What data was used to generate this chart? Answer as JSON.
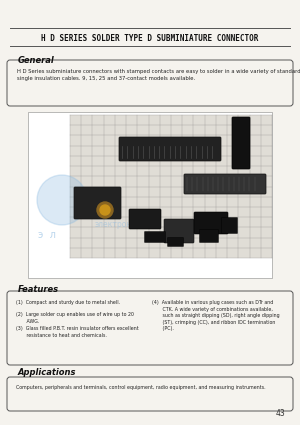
{
  "bg_color": "#f5f3ee",
  "title": "H D SERIES SOLDER TYPE D SUBMINIATURE CONNECTOR",
  "title_color": "#111111",
  "section_general_label": "General",
  "general_text": "H D Series subminiature connectors with stamped contacts are easy to solder in a wide variety of standard and\nsingle insulation cables. 9, 15, 25 and 37-contact models available.",
  "section_features_label": "Features",
  "features_left_1": "(1)  Compact and sturdy due to metal shell.",
  "features_left_2": "(2)  Large solder cup enables use of wire up to 20\n       AWG.",
  "features_left_3": "(3)  Glass filled P.B.T. resin insulator offers excellent\n       resistance to heat and chemicals.",
  "features_right_1": "(4)  Available in various plug cases such as DTr and\n       CTK. A wide variety of combinations available,\n       such as straight dipping (SD), right angle dipping\n       (ST), crimping (CC), and ribbon IDC termination\n       (PC).",
  "section_applications_label": "Applications",
  "applications_text": "Computers, peripherals and terminals, control equipment, radio equipment, and measuring instruments.",
  "page_number": "43",
  "photo_bg": "#d8d4cc",
  "photo_bg2": "#e8e6e0",
  "grid_color": "#aaaaaa",
  "connector_dark": "#1a1a1a",
  "connector_mid": "#3a3a3a",
  "watermark_color": "#88b8e0"
}
